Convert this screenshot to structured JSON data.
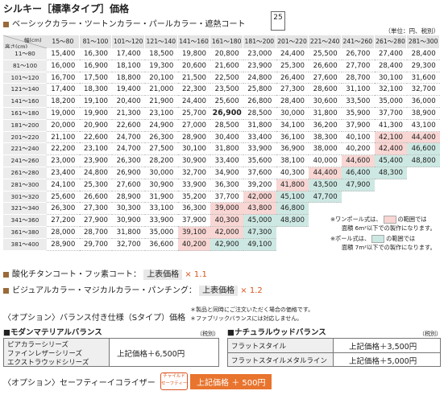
{
  "header": {
    "title": "シルキー［標準タイプ］価格",
    "badge": "25",
    "subtitle": "ベーシックカラー・ツートンカラー・パールカラー・遮熱コート",
    "unit": "（単位：円、税別）"
  },
  "price_table": {
    "corner_width": "幅(cm)",
    "corner_height": "高さ(cm)",
    "columns": [
      "15～80",
      "81～100",
      "101～120",
      "121～140",
      "141～160",
      "161～180",
      "181～200",
      "201～220",
      "221～240",
      "241～260",
      "261～280",
      "281～300"
    ],
    "rows": [
      {
        "label": "11～80",
        "cells": [
          "15,400",
          "16,300",
          "17,400",
          "18,500",
          "19,800",
          "20,800",
          "23,000",
          "24,400",
          "25,500",
          "26,700",
          "27,400",
          "28,400"
        ]
      },
      {
        "label": "81～100",
        "cells": [
          "16,000",
          "16,900",
          "18,100",
          "19,300",
          "20,600",
          "21,600",
          "23,900",
          "25,300",
          "26,600",
          "27,700",
          "28,400",
          "29,300"
        ]
      },
      {
        "label": "101～120",
        "cells": [
          "16,700",
          "17,500",
          "18,800",
          "20,100",
          "21,500",
          "22,500",
          "24,800",
          "26,400",
          "27,600",
          "28,700",
          "30,100",
          "31,600"
        ]
      },
      {
        "label": "121～140",
        "cells": [
          "17,400",
          "18,300",
          "19,400",
          "21,000",
          "22,300",
          "23,500",
          "25,800",
          "27,300",
          "28,600",
          "31,100",
          "32,100",
          "32,700"
        ]
      },
      {
        "label": "141～160",
        "cells": [
          "18,200",
          "19,100",
          "20,400",
          "21,900",
          "24,400",
          "25,600",
          "26,800",
          "28,400",
          "30,600",
          "33,500",
          "35,000",
          "36,000"
        ]
      },
      {
        "label": "161～180",
        "cells": [
          "19,000",
          "19,900",
          "21,300",
          "23,100",
          "25,700",
          {
            "text": "26,900",
            "bold": true
          },
          "28,500",
          "30,000",
          "31,800",
          "35,900",
          "37,700",
          "38,900"
        ]
      },
      {
        "label": "181～200",
        "cells": [
          "20,000",
          "20,900",
          "22,600",
          "24,900",
          "27,000",
          "28,500",
          "31,800",
          "34,100",
          "36,200",
          "37,900",
          "41,300",
          "43,100"
        ]
      },
      {
        "label": "201～220",
        "cells": [
          "21,100",
          "22,600",
          "24,700",
          "26,300",
          "28,900",
          "30,400",
          "33,400",
          "36,100",
          "38,300",
          "40,100",
          {
            "text": "42,100",
            "tint": "pink"
          },
          {
            "text": "44,400",
            "tint": "pink"
          }
        ]
      },
      {
        "label": "221～240",
        "cells": [
          "22,200",
          "23,100",
          "24,700",
          "27,500",
          "30,100",
          "31,800",
          "33,900",
          "36,900",
          "38,000",
          "40,200",
          {
            "text": "42,400",
            "tint": "pink"
          },
          {
            "text": "46,600",
            "tint": "teal"
          }
        ]
      },
      {
        "label": "241～260",
        "cells": [
          "23,000",
          "23,900",
          "26,300",
          "28,200",
          "30,900",
          "33,400",
          "35,600",
          "38,100",
          "40,000",
          {
            "text": "44,600",
            "tint": "pink"
          },
          {
            "text": "45,400",
            "tint": "teal"
          },
          {
            "text": "48,800",
            "tint": "teal"
          }
        ]
      },
      {
        "label": "261～280",
        "cells": [
          "23,400",
          "24,800",
          "26,900",
          "30,000",
          "32,700",
          "34,900",
          "37,600",
          "40,300",
          {
            "text": "44,400",
            "tint": "pink"
          },
          {
            "text": "46,400",
            "tint": "teal"
          },
          {
            "text": "48,300",
            "tint": "teal"
          }
        ]
      },
      {
        "label": "281～300",
        "cells": [
          "24,100",
          "25,300",
          "27,600",
          "30,900",
          "33,900",
          "36,300",
          "39,200",
          {
            "text": "41,800",
            "tint": "pink"
          },
          {
            "text": "43,500",
            "tint": "teal"
          },
          {
            "text": "47,900",
            "tint": "teal"
          }
        ]
      },
      {
        "label": "301～320",
        "cells": [
          "25,600",
          "26,600",
          "28,900",
          "31,900",
          "35,200",
          "37,700",
          {
            "text": "42,000",
            "tint": "pink"
          },
          {
            "text": "45,100",
            "tint": "teal"
          },
          {
            "text": "47,700",
            "tint": "teal"
          }
        ]
      },
      {
        "label": "321～340",
        "cells": [
          "26,300",
          "27,300",
          "30,300",
          "33,100",
          "36,300",
          {
            "text": "39,000",
            "tint": "pink"
          },
          {
            "text": "43,800",
            "tint": "pink"
          },
          {
            "text": "46,800",
            "tint": "teal"
          }
        ]
      },
      {
        "label": "341～360",
        "cells": [
          "27,200",
          "27,900",
          "30,900",
          "33,900",
          "37,900",
          {
            "text": "40,300",
            "tint": "pink"
          },
          {
            "text": "45,000",
            "tint": "teal"
          },
          {
            "text": "48,800",
            "tint": "teal"
          }
        ]
      },
      {
        "label": "361～380",
        "cells": [
          "28,000",
          "28,700",
          "31,800",
          "35,000",
          {
            "text": "39,100",
            "tint": "pink"
          },
          {
            "text": "42,000",
            "tint": "pink"
          },
          {
            "text": "47,300",
            "tint": "teal"
          }
        ]
      },
      {
        "label": "381～400",
        "cells": [
          "28,900",
          "29,700",
          "32,700",
          "36,600",
          {
            "text": "40,200",
            "tint": "pink"
          },
          {
            "text": "42,900",
            "tint": "teal"
          },
          {
            "text": "49,100",
            "tint": "teal"
          }
        ]
      }
    ]
  },
  "notes": [
    {
      "lead": "※ワンポール式は、",
      "mid": "の範囲では",
      "tail": "面積 6m²以下での製作になります。",
      "tint": "pink"
    },
    {
      "lead": "※ポール式は、",
      "mid": "の範囲では",
      "tail": "面積 7m²以下での製作になります。",
      "tint": "teal"
    }
  ],
  "multipliers": [
    {
      "label": "酸化チタンコート・フッ素コート：",
      "base": "上表価格",
      "factor": "× 1.1"
    },
    {
      "label": "ビジュアルカラー・マジカルカラー・パンチング：",
      "base": "上表価格",
      "factor": "× 1.2"
    }
  ],
  "balance": {
    "title": "〈オプション〉バランス付き仕様（Sタイプ）価格",
    "notes": [
      "＊製品と同時にご注文いただく場合の価格です。",
      "＊ファブリックバランスには対応しません。"
    ],
    "modern": {
      "title": "■モダンマテリアルバランス",
      "tax": "（税別）",
      "series": [
        "ピアカラーシリーズ",
        "ファインレザーシリーズ",
        "エクストラウッドシリーズ"
      ],
      "price": "上記価格＋6,500円"
    },
    "natural": {
      "title": "■ナチュラルウッドバランス",
      "tax": "（税別）",
      "rows": [
        {
          "name": "フラットスタイル",
          "price": "上記価格＋3,500円"
        },
        {
          "name": "フラットスタイルメタルライン",
          "price": "上記価格＋5,000円"
        }
      ]
    }
  },
  "safety": {
    "title": "〈オプション〉セーフティーイコライザー",
    "badge": [
      "チャイルド",
      "セーフティー"
    ],
    "base": "上記価格",
    "add": "＋ 500円"
  }
}
